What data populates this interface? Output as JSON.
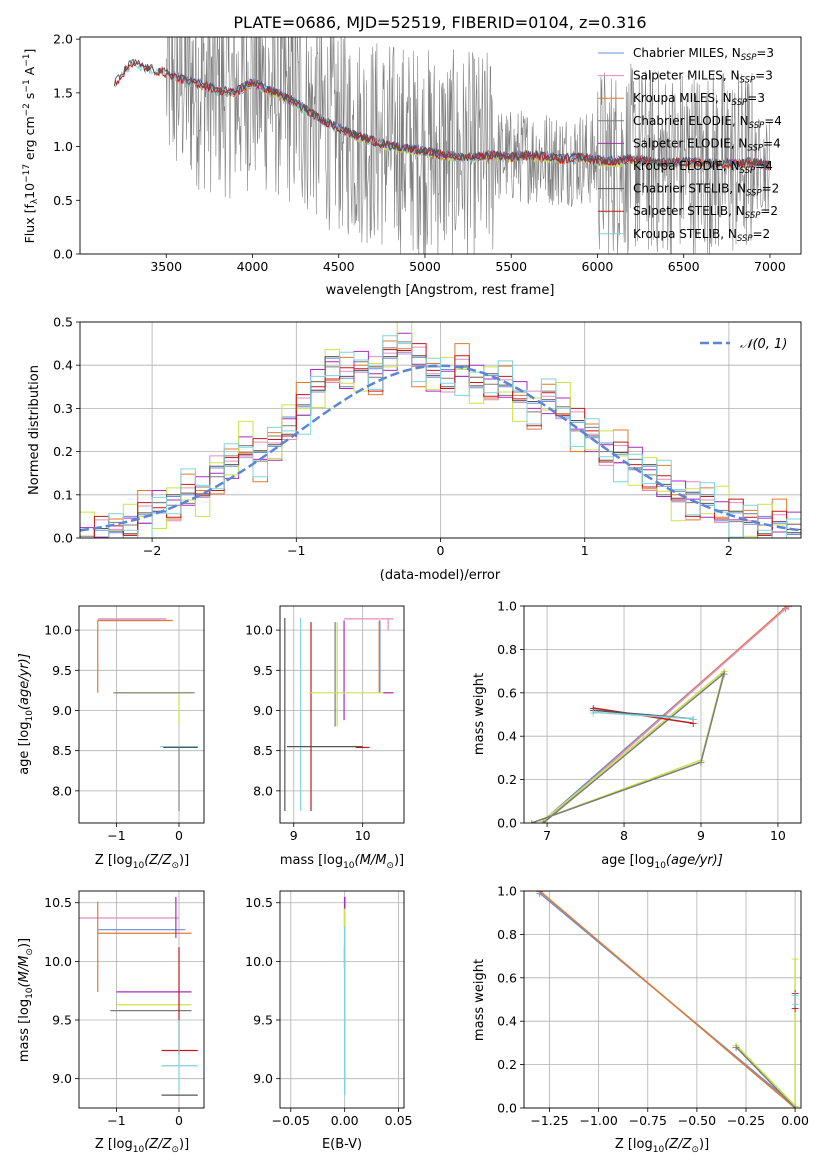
{
  "figure": {
    "title": "PLATE=0686, MJD=52519, FIBERID=0104, z=0.316"
  },
  "colors": {
    "Chabrier MILES": "#6a8fd8",
    "Salpeter MILES": "#e28cc0",
    "Kroupa MILES": "#e07a30",
    "Chabrier ELODIE": "#7c7c7c",
    "Salpeter ELODIE": "#a62fbf",
    "Kroupa ELODIE": "#cbe24a",
    "Chabrier STELIB": "#555555",
    "Salpeter STELIB": "#c11b1b",
    "Kroupa STELIB": "#7fd3de",
    "normal": "#5b85d6",
    "grid": "#b0b0b0",
    "data": "#7f7f7f"
  },
  "chart_data": [
    {
      "id": "spectrum",
      "type": "line",
      "xlabel": "wavelength [Angstrom, rest frame]",
      "ylabel": "Flux [f",
      "ylabel_parts": [
        "Flux [f",
        "λ",
        "10",
        "−17",
        " erg cm",
        "−2",
        " s",
        "−1",
        " A",
        "−1",
        "]"
      ],
      "xlim": [
        3000,
        7180
      ],
      "ylim": [
        0,
        2.02
      ],
      "xticks": [
        3500,
        4000,
        4500,
        5000,
        5500,
        6000,
        6500,
        7000
      ],
      "yticks": [
        0.0,
        0.5,
        1.0,
        1.5,
        2.0
      ],
      "legend_position": "top-right",
      "legend": [
        {
          "series": "Chabrier MILES",
          "label": "Chabrier MILES, N",
          "sub": "SSP",
          "tail": "=3"
        },
        {
          "series": "Salpeter MILES",
          "label": "Salpeter MILES, N",
          "sub": "SSP",
          "tail": "=3"
        },
        {
          "series": "Kroupa MILES",
          "label": "Kroupa MILES, N",
          "sub": "SSP",
          "tail": "=3"
        },
        {
          "series": "Chabrier ELODIE",
          "label": "Chabrier ELODIE, N",
          "sub": "SSP",
          "tail": "=4"
        },
        {
          "series": "Salpeter ELODIE",
          "label": "Salpeter ELODIE, N",
          "sub": "SSP",
          "tail": "=4"
        },
        {
          "series": "Kroupa ELODIE",
          "label": "Kroupa ELODIE, N",
          "sub": "SSP",
          "tail": "=4"
        },
        {
          "series": "Chabrier STELIB",
          "label": "Chabrier STELIB, N",
          "sub": "SSP",
          "tail": "=2"
        },
        {
          "series": "Salpeter STELIB",
          "label": "Salpeter STELIB, N",
          "sub": "SSP",
          "tail": "=2"
        },
        {
          "series": "Kroupa STELIB",
          "label": "Kroupa STELIB, N",
          "sub": "SSP",
          "tail": "=2"
        }
      ],
      "continuum": {
        "x": [
          3200,
          3300,
          3400,
          3500,
          3600,
          3700,
          3800,
          3900,
          4000,
          4100,
          4200,
          4300,
          4400,
          4500,
          4600,
          4700,
          4800,
          4900,
          5000,
          5100,
          5200,
          5300,
          5400,
          5500,
          5600,
          5700,
          5800,
          5900,
          6000,
          6100,
          6200,
          6300,
          6400,
          6500,
          6600,
          6700,
          6800,
          6900,
          7000
        ],
        "y": [
          1.58,
          1.78,
          1.72,
          1.68,
          1.62,
          1.58,
          1.52,
          1.5,
          1.6,
          1.52,
          1.45,
          1.35,
          1.25,
          1.17,
          1.1,
          1.05,
          1.0,
          0.98,
          0.95,
          0.92,
          0.9,
          0.9,
          0.92,
          0.9,
          0.92,
          0.9,
          0.88,
          0.9,
          0.87,
          0.86,
          0.88,
          0.86,
          0.84,
          0.86,
          0.85,
          0.84,
          0.84,
          0.85,
          0.82
        ]
      },
      "data_band_x": [
        3500,
        7000
      ]
    },
    {
      "id": "residuals",
      "type": "line",
      "xlabel": "(data-model)/error",
      "ylabel": "Normed distribution",
      "xlim": [
        -2.5,
        2.5
      ],
      "ylim": [
        0,
        0.5
      ],
      "xticks": [
        -2,
        -1,
        0,
        1,
        2
      ],
      "xtick_labels": [
        "−2",
        "−1",
        "0",
        "1",
        "2"
      ],
      "yticks": [
        0.0,
        0.1,
        0.2,
        0.3,
        0.4,
        0.5
      ],
      "legend_position": "top-right",
      "legend": [
        {
          "label": "𝒩(0, 1)"
        }
      ],
      "bin_edges": [
        -2.5,
        -2.4,
        -2.3,
        -2.2,
        -2.1,
        -2.0,
        -1.9,
        -1.8,
        -1.7,
        -1.6,
        -1.5,
        -1.4,
        -1.3,
        -1.2,
        -1.1,
        -1.0,
        -0.9,
        -0.8,
        -0.7,
        -0.6,
        -0.5,
        -0.4,
        -0.3,
        -0.2,
        -0.1,
        0.0,
        0.1,
        0.2,
        0.3,
        0.4,
        0.5,
        0.6,
        0.7,
        0.8,
        0.9,
        1.0,
        1.1,
        1.2,
        1.3,
        1.4,
        1.5,
        1.6,
        1.7,
        1.8,
        1.9,
        2.0,
        2.1,
        2.2,
        2.3,
        2.4,
        2.5
      ],
      "hist_values": [
        0.0,
        0.01,
        0.02,
        0.03,
        0.05,
        0.07,
        0.08,
        0.1,
        0.11,
        0.15,
        0.17,
        0.21,
        0.19,
        0.22,
        0.26,
        0.3,
        0.35,
        0.4,
        0.37,
        0.4,
        0.38,
        0.42,
        0.45,
        0.41,
        0.38,
        0.37,
        0.39,
        0.36,
        0.36,
        0.35,
        0.33,
        0.3,
        0.32,
        0.3,
        0.26,
        0.24,
        0.2,
        0.19,
        0.17,
        0.15,
        0.12,
        0.1,
        0.09,
        0.08,
        0.06,
        0.05,
        0.04,
        0.03,
        0.03,
        0.02
      ],
      "normal_curve": {
        "mean": 0,
        "sigma": 1
      }
    },
    {
      "id": "age-vs-z",
      "type": "scatter",
      "xlabel": "Z [log",
      "xlabel_tail": "(Z/Z",
      "ylabel": "age  [log",
      "ylabel_tail": "(age/yr)]",
      "xlim": [
        -1.6,
        0.4
      ],
      "ylim": [
        7.6,
        10.3
      ],
      "xticks": [
        -1,
        0
      ],
      "xtick_labels": [
        "−1",
        "0"
      ],
      "yticks": [
        8.0,
        8.5,
        9.0,
        9.5,
        10.0
      ],
      "ssp_points": [
        {
          "series": "Salpeter MILES",
          "z": -1.3,
          "age": 10.14,
          "dz": [
            0.0,
            1.1
          ],
          "dage": [
            0.0,
            0.0
          ]
        },
        {
          "series": "Chabrier MILES",
          "z": -1.3,
          "age": 10.12,
          "dz": [
            0.0,
            1.0
          ],
          "dage": [
            0.0,
            0.0
          ]
        },
        {
          "series": "Kroupa MILES",
          "z": -1.3,
          "age": 10.12,
          "dz": [
            0.0,
            1.2
          ],
          "dage": [
            0.9,
            0.0
          ]
        },
        {
          "series": "Kroupa ELODIE",
          "z": 0.0,
          "age": 9.22,
          "dz": [
            1.0,
            0.2
          ],
          "dage": [
            0.4,
            0.0
          ]
        },
        {
          "series": "Chabrier ELODIE",
          "z": -0.05,
          "age": 9.22,
          "dz": [
            1.0,
            0.3
          ],
          "dage": [
            0.0,
            0.0
          ]
        },
        {
          "series": "Kroupa STELIB",
          "z": 0.0,
          "age": 8.55,
          "dz": [
            0.3,
            0.3
          ],
          "dage": [
            0.8,
            0.0
          ]
        },
        {
          "series": "Chabrier STELIB",
          "z": 0.0,
          "age": 8.54,
          "dz": [
            0.25,
            0.3
          ],
          "dage": [
            0.0,
            0.0
          ]
        }
      ]
    },
    {
      "id": "age-vs-mass",
      "type": "scatter",
      "xlabel": "mass [log",
      "xlabel_tail": "(M/M",
      "xlim": [
        8.8,
        10.6
      ],
      "ylim": [
        7.6,
        10.3
      ],
      "xticks": [
        9,
        10
      ],
      "yticks": [
        8.0,
        8.5,
        9.0,
        9.5,
        10.0
      ],
      "mass_lines": [
        {
          "series": "Chabrier STELIB",
          "mass": 8.87,
          "age_lo": 7.75,
          "age_hi": 10.15
        },
        {
          "series": "Kroupa STELIB",
          "mass": 9.1,
          "age_lo": 7.75,
          "age_hi": 10.15
        },
        {
          "series": "Salpeter STELIB",
          "mass": 9.25,
          "age_lo": 7.75,
          "age_hi": 10.1
        },
        {
          "series": "Chabrier ELODIE",
          "mass": 9.6,
          "age_lo": 8.8,
          "age_hi": 10.1
        },
        {
          "series": "Kroupa ELODIE",
          "mass": 9.63,
          "age_lo": 8.8,
          "age_hi": 10.1
        },
        {
          "series": "Salpeter ELODIE",
          "mass": 9.73,
          "age_lo": 8.88,
          "age_hi": 10.12
        },
        {
          "series": "Chabrier MILES",
          "mass": 10.25,
          "age_lo": 9.22,
          "age_hi": 10.12
        },
        {
          "series": "Kroupa MILES",
          "mass": 10.24,
          "age_lo": 9.22,
          "age_hi": 10.12
        },
        {
          "series": "Salpeter MILES",
          "mass": 10.37,
          "age_lo": 10.0,
          "age_hi": 10.14
        }
      ],
      "age_lines": [
        {
          "series": "Salpeter MILES",
          "age": 10.14,
          "m_lo": 9.73,
          "m_hi": 10.45
        },
        {
          "series": "Kroupa ELODIE",
          "age": 9.22,
          "m_lo": 9.22,
          "m_hi": 10.4
        },
        {
          "series": "Salpeter ELODIE",
          "age": 9.22,
          "m_lo": 10.3,
          "m_hi": 10.45
        },
        {
          "series": "Chabrier STELIB",
          "age": 8.55,
          "m_lo": 8.9,
          "m_hi": 10.0
        },
        {
          "series": "Salpeter STELIB",
          "age": 8.54,
          "m_lo": 9.9,
          "m_hi": 10.1
        }
      ]
    },
    {
      "id": "weight-vs-age",
      "type": "line",
      "xlabel": "age  [log",
      "xlabel_tail": "(age/yr)]",
      "ylabel": "mass weight",
      "xlim": [
        6.7,
        10.3
      ],
      "ylim": [
        0,
        1.0
      ],
      "xticks": [
        7,
        8,
        9,
        10
      ],
      "yticks": [
        0.0,
        0.2,
        0.4,
        0.6,
        0.8,
        1.0
      ],
      "series": [
        {
          "series": "Chabrier MILES",
          "x": [
            6.95,
            10.1
          ],
          "y": [
            0.01,
            0.99
          ]
        },
        {
          "series": "Kroupa MILES",
          "x": [
            6.95,
            10.12
          ],
          "y": [
            0.0,
            1.0
          ]
        },
        {
          "series": "Salpeter MILES",
          "x": [
            6.95,
            10.14
          ],
          "y": [
            0.0,
            1.0
          ]
        },
        {
          "series": "Kroupa ELODIE",
          "x": [
            6.8,
            9.0,
            9.3,
            6.95
          ],
          "y": [
            0.0,
            0.29,
            0.7,
            0.01
          ]
        },
        {
          "series": "Chabrier ELODIE",
          "x": [
            6.8,
            9.0,
            9.3,
            6.95
          ],
          "y": [
            0.0,
            0.28,
            0.69,
            0.0
          ]
        },
        {
          "series": "Salpeter STELIB",
          "x": [
            7.6,
            8.9
          ],
          "y": [
            0.53,
            0.46
          ]
        },
        {
          "series": "Chabrier STELIB",
          "x": [
            7.6,
            8.9
          ],
          "y": [
            0.52,
            0.48
          ]
        },
        {
          "series": "Kroupa STELIB",
          "x": [
            7.6,
            8.9
          ],
          "y": [
            0.51,
            0.48
          ]
        }
      ]
    },
    {
      "id": "mass-vs-z",
      "type": "scatter",
      "xlabel": "Z [log",
      "xlabel_tail": "(Z/Z",
      "ylabel": "mass [log",
      "ylabel_tail": "(M/M",
      "xlim": [
        -1.6,
        0.4
      ],
      "ylim": [
        8.75,
        10.6
      ],
      "xticks": [
        -1,
        0
      ],
      "xtick_labels": [
        "−1",
        "0"
      ],
      "yticks": [
        9.0,
        9.5,
        10.0,
        10.5
      ],
      "h_lines": [
        {
          "series": "Salpeter MILES",
          "mass": 10.37,
          "z_lo": -1.6,
          "z_hi": 0.0
        },
        {
          "series": "Chabrier MILES",
          "mass": 10.27,
          "z_lo": -1.3,
          "z_hi": 0.1
        },
        {
          "series": "Kroupa MILES",
          "mass": 10.24,
          "z_lo": -1.3,
          "z_hi": 0.2
        },
        {
          "series": "Salpeter ELODIE",
          "mass": 9.74,
          "z_lo": -1.0,
          "z_hi": 0.2
        },
        {
          "series": "Kroupa ELODIE",
          "mass": 9.63,
          "z_lo": -1.0,
          "z_hi": 0.2
        },
        {
          "series": "Chabrier ELODIE",
          "mass": 9.58,
          "z_lo": -1.1,
          "z_hi": 0.2
        },
        {
          "series": "Salpeter STELIB",
          "mass": 9.24,
          "z_lo": -0.28,
          "z_hi": 0.3
        },
        {
          "series": "Kroupa STELIB",
          "mass": 9.11,
          "z_lo": -0.28,
          "z_hi": 0.3
        },
        {
          "series": "Chabrier STELIB",
          "mass": 8.86,
          "z_lo": -0.28,
          "z_hi": 0.3
        }
      ],
      "v_lines": [
        {
          "series": "Kroupa MILES",
          "z": -1.3,
          "lo": 9.74,
          "hi": 10.51
        },
        {
          "series": "Salpeter ELODIE",
          "z": -0.05,
          "lo": 10.2,
          "hi": 10.55
        },
        {
          "series": "Salpeter STELIB",
          "z": 0.0,
          "lo": 9.2,
          "hi": 10.12
        },
        {
          "series": "Kroupa STELIB",
          "z": 0.0,
          "lo": 8.9,
          "hi": 9.5
        }
      ]
    },
    {
      "id": "mass-vs-ebv",
      "type": "scatter",
      "xlabel": "E(B-V)",
      "xlim": [
        -0.06,
        0.055
      ],
      "ylim": [
        8.75,
        10.6
      ],
      "xticks": [
        -0.05,
        0.0,
        0.05
      ],
      "xtick_labels": [
        "−0.05",
        "0.00",
        "0.05"
      ],
      "yticks": [
        9.0,
        9.5,
        10.0,
        10.5
      ],
      "v_lines": [
        {
          "series": "Salpeter ELODIE",
          "ebv": 0.0,
          "lo": 10.3,
          "hi": 10.55
        },
        {
          "series": "Kroupa ELODIE",
          "ebv": 0.0,
          "lo": 10.0,
          "hi": 10.45
        },
        {
          "series": "Salpeter STELIB",
          "ebv": 0.0,
          "lo": 9.95,
          "hi": 10.12
        },
        {
          "series": "Kroupa STELIB",
          "ebv": 0.0,
          "lo": 8.86,
          "hi": 10.3
        }
      ]
    },
    {
      "id": "weight-vs-z",
      "type": "line",
      "xlabel": "Z [log",
      "xlabel_tail": "(Z/Z",
      "ylabel": "mass weight",
      "xlim": [
        -1.38,
        0.03
      ],
      "ylim": [
        0,
        1.0
      ],
      "xticks": [
        -1.25,
        -1.0,
        -0.75,
        -0.5,
        -0.25,
        0.0
      ],
      "xtick_labels": [
        "−1.25",
        "−1.00",
        "−0.75",
        "−0.50",
        "−0.25",
        "0.00"
      ],
      "yticks": [
        0.0,
        0.2,
        0.4,
        0.6,
        0.8,
        1.0
      ],
      "series": [
        {
          "series": "Chabrier MILES",
          "x": [
            -1.3,
            0.0
          ],
          "y": [
            0.99,
            0.01
          ]
        },
        {
          "series": "Kroupa MILES",
          "x": [
            -1.3,
            0.0
          ],
          "y": [
            1.0,
            0.0
          ]
        },
        {
          "series": "Kroupa ELODIE",
          "x": [
            -0.3,
            0.0,
            0.0
          ],
          "y": [
            0.29,
            0.01,
            0.69
          ]
        },
        {
          "series": "Chabrier ELODIE",
          "x": [
            -0.3,
            0.0
          ],
          "y": [
            0.28,
            0.0
          ]
        },
        {
          "series": "Salpeter STELIB",
          "x": [
            0.0,
            0.0
          ],
          "y": [
            0.46,
            0.53
          ]
        },
        {
          "series": "Kroupa STELIB",
          "x": [
            0.0,
            0.0
          ],
          "y": [
            0.48,
            0.52
          ]
        }
      ]
    }
  ]
}
